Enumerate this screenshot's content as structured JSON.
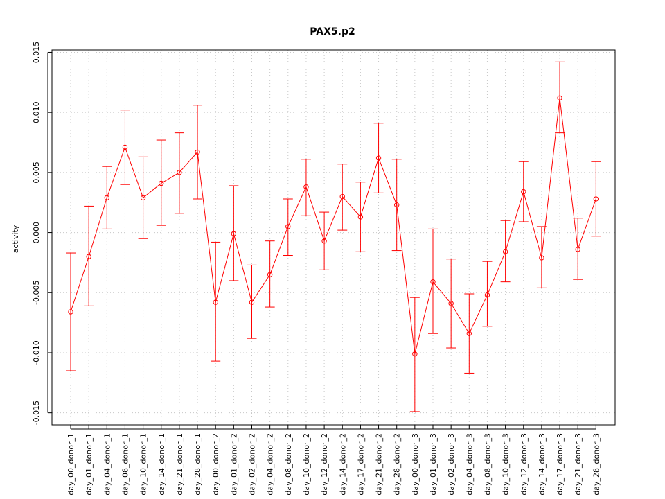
{
  "chart_data": {
    "type": "line",
    "title": "PAX5.p2",
    "xlabel": "",
    "ylabel": "activity",
    "ylim": [
      -0.016,
      0.0152
    ],
    "yticks": [
      "-0.015",
      "-0.010",
      "-0.005",
      "0.000",
      "0.005",
      "0.010",
      "0.015"
    ],
    "grid": true,
    "color": "#ff0000",
    "categories": [
      "day_00_donor_1",
      "day_01_donor_1",
      "day_04_donor_1",
      "day_08_donor_1",
      "day_10_donor_1",
      "day_14_donor_1",
      "day_21_donor_1",
      "day_28_donor_1",
      "day_00_donor_2",
      "day_01_donor_2",
      "day_02_donor_2",
      "day_04_donor_2",
      "day_08_donor_2",
      "day_10_donor_2",
      "day_12_donor_2",
      "day_14_donor_2",
      "day_17_donor_2",
      "day_21_donor_2",
      "day_28_donor_2",
      "day_00_donor_3",
      "day_01_donor_3",
      "day_02_donor_3",
      "day_04_donor_3",
      "day_08_donor_3",
      "day_10_donor_3",
      "day_12_donor_3",
      "day_14_donor_3",
      "day_17_donor_3",
      "day_21_donor_3",
      "day_28_donor_3"
    ],
    "values": [
      -0.0066,
      -0.002,
      0.0029,
      0.0071,
      0.0029,
      0.0041,
      0.005,
      0.0067,
      -0.0058,
      -0.0001,
      -0.0058,
      -0.0035,
      0.0005,
      0.0038,
      -0.0007,
      0.003,
      0.0013,
      0.0062,
      0.0023,
      -0.0101,
      -0.0041,
      -0.0059,
      -0.0084,
      -0.0052,
      -0.0016,
      0.0034,
      -0.0021,
      0.0112,
      -0.0014,
      0.0028
    ],
    "upper": [
      -0.0017,
      0.0022,
      0.0055,
      0.0102,
      0.0063,
      0.0077,
      0.0083,
      0.0106,
      -0.0008,
      0.0039,
      -0.0027,
      -0.0007,
      0.0028,
      0.0061,
      0.0017,
      0.0057,
      0.0042,
      0.0091,
      0.0061,
      -0.0054,
      0.0003,
      -0.0022,
      -0.0051,
      -0.0024,
      0.001,
      0.0059,
      0.0005,
      0.0142,
      0.0012,
      0.0059
    ],
    "lower": [
      -0.0115,
      -0.0061,
      0.0003,
      0.004,
      -0.0005,
      0.0006,
      0.0016,
      0.0028,
      -0.0107,
      -0.004,
      -0.0088,
      -0.0062,
      -0.0019,
      0.0014,
      -0.0031,
      0.0002,
      -0.0016,
      0.0033,
      -0.0015,
      -0.0149,
      -0.0084,
      -0.0096,
      -0.0117,
      -0.0078,
      -0.0041,
      0.0009,
      -0.0046,
      0.0083,
      -0.0039,
      -0.0003
    ]
  }
}
